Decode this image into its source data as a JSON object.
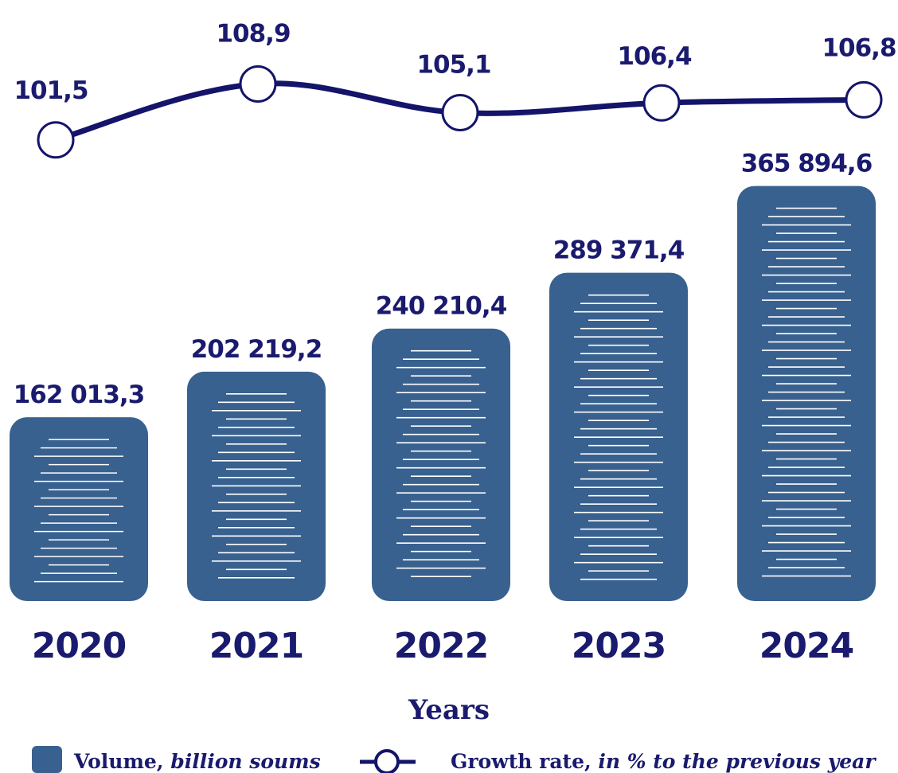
{
  "chart_data": {
    "type": "bar",
    "categories": [
      "2020",
      "2021",
      "2022",
      "2023",
      "2024"
    ],
    "xlabel": "Years",
    "series": [
      {
        "name": "Volume, billion soums",
        "type": "bar",
        "values": [
          162013.3,
          202219.2,
          240210.4,
          289371.4,
          365894.6
        ],
        "labels": [
          "162 013,3",
          "202 219,2",
          "240 210,4",
          "289 371,4",
          "365 894,6"
        ],
        "color": "#38618f"
      },
      {
        "name": "Growth rate, in % to the previous year",
        "type": "line",
        "values": [
          101.5,
          108.9,
          105.1,
          106.4,
          106.8
        ],
        "labels": [
          "101,5",
          "108,9",
          "105,1",
          "106,4",
          "106,8"
        ],
        "color": "#14146b"
      }
    ]
  },
  "legend": {
    "volume_label": "Volume,",
    "volume_unit": "billion soums",
    "rate_label": "Growth rate,",
    "rate_unit": "in % to the previous year"
  }
}
